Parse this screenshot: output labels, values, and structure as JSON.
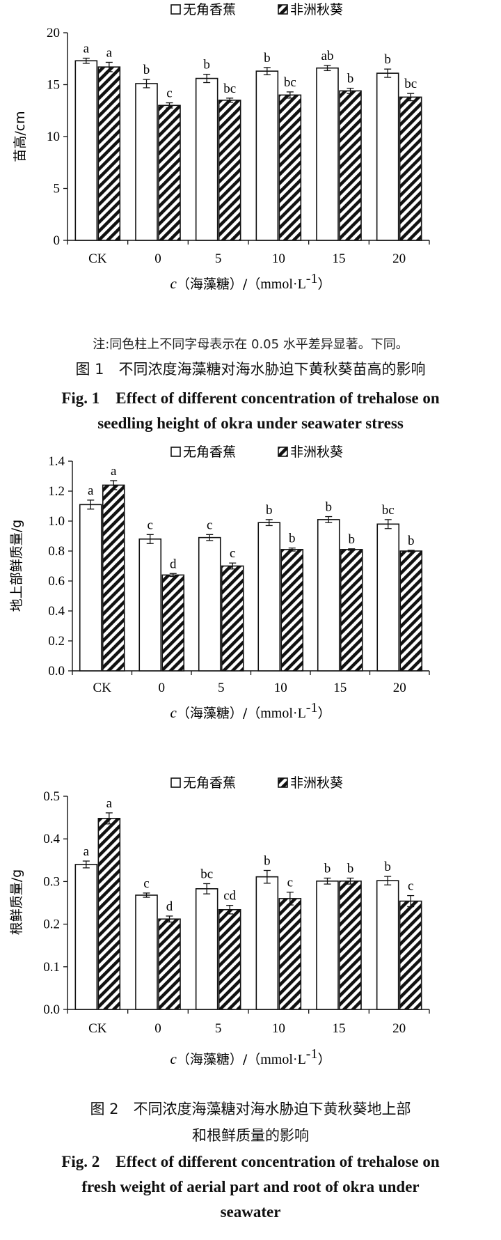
{
  "legend": {
    "series1": "无角香蕉",
    "series2": "非洲秋葵"
  },
  "fig1": {
    "note": "注:同色柱上不同字母表示在 0.05 水平差异显著。下同。",
    "title_cn": "图 1　不同浓度海藻糖对海水胁迫下黄秋葵苗高的影响",
    "title_en_line1": "Fig. 1　Effect of different concentration of trehalose on",
    "title_en_line2": "seedling height of okra under seawater stress"
  },
  "fig2": {
    "title_cn_line1": "图 2　不同浓度海藻糖对海水胁迫下黄秋葵地上部",
    "title_cn_line2": "和根鲜质量的影响",
    "title_en_line1": "Fig. 2　Effect of different concentration of trehalose on",
    "title_en_line2": "fresh weight of aerial part and root of okra under",
    "title_en_line3": "seawater"
  },
  "chart_data": [
    {
      "type": "bar",
      "categories": [
        "CK",
        "0",
        "5",
        "10",
        "15",
        "20"
      ],
      "ylabel": "苗高/cm",
      "xlabel_var": "c",
      "xlabel_cn": "（海藻糖）/（",
      "xlabel_unit": "mmol·L",
      "xlabel_sup": "-1",
      "xlabel_close": "）",
      "ylim": [
        0,
        20
      ],
      "yticks": [
        0,
        5,
        10,
        15,
        20
      ],
      "tick_labels": [
        "0",
        "5",
        "10",
        "15",
        "20"
      ],
      "series": [
        {
          "name": "无角香蕉",
          "values": [
            17.3,
            15.1,
            15.6,
            16.3,
            16.6,
            16.1
          ],
          "errors": [
            0.25,
            0.4,
            0.4,
            0.35,
            0.25,
            0.4
          ],
          "letters": [
            "a",
            "b",
            "b",
            "b",
            "ab",
            "b"
          ]
        },
        {
          "name": "非洲秋葵",
          "values": [
            16.7,
            13.0,
            13.5,
            14.0,
            14.4,
            13.8
          ],
          "errors": [
            0.45,
            0.25,
            0.2,
            0.3,
            0.25,
            0.35
          ],
          "letters": [
            "a",
            "c",
            "bc",
            "bc",
            "b",
            "bc"
          ]
        }
      ]
    },
    {
      "type": "bar",
      "categories": [
        "CK",
        "0",
        "5",
        "10",
        "15",
        "20"
      ],
      "ylabel": "地上部鲜质量/g",
      "xlabel_var": "c",
      "xlabel_cn": "（海藻糖）/（",
      "xlabel_unit": "mmol·L",
      "xlabel_sup": "-1",
      "xlabel_close": "）",
      "ylim": [
        0,
        1.4
      ],
      "yticks": [
        0,
        0.2,
        0.4,
        0.6,
        0.8,
        1.0,
        1.2,
        1.4
      ],
      "tick_labels": [
        "0.0",
        "0.2",
        "0.4",
        "0.6",
        "0.8",
        "1.0",
        "1.2",
        "1.4"
      ],
      "series": [
        {
          "name": "无角香蕉",
          "values": [
            1.11,
            0.88,
            0.89,
            0.99,
            1.01,
            0.98
          ],
          "errors": [
            0.03,
            0.03,
            0.02,
            0.02,
            0.02,
            0.03
          ],
          "letters": [
            "a",
            "c",
            "c",
            "b",
            "b",
            "bc"
          ]
        },
        {
          "name": "非洲秋葵",
          "values": [
            1.24,
            0.64,
            0.7,
            0.81,
            0.81,
            0.8
          ],
          "errors": [
            0.03,
            0.01,
            0.02,
            0.01,
            0.005,
            0.005
          ],
          "letters": [
            "a",
            "d",
            "c",
            "b",
            "b",
            "b"
          ]
        }
      ]
    },
    {
      "type": "bar",
      "categories": [
        "CK",
        "0",
        "5",
        "10",
        "15",
        "20"
      ],
      "ylabel": "根鲜质量/g",
      "xlabel_var": "c",
      "xlabel_cn": "（海藻糖）/（",
      "xlabel_unit": "mmol·L",
      "xlabel_sup": "-1",
      "xlabel_close": "）",
      "ylim": [
        0,
        0.5
      ],
      "yticks": [
        0,
        0.1,
        0.2,
        0.3,
        0.4,
        0.5
      ],
      "tick_labels": [
        "0.0",
        "0.1",
        "0.2",
        "0.3",
        "0.4",
        "0.5"
      ],
      "series": [
        {
          "name": "无角香蕉",
          "values": [
            0.34,
            0.268,
            0.283,
            0.311,
            0.301,
            0.302
          ],
          "errors": [
            0.008,
            0.005,
            0.012,
            0.015,
            0.007,
            0.01
          ],
          "letters": [
            "a",
            "c",
            "bc",
            "b",
            "b",
            "b"
          ]
        },
        {
          "name": "非洲秋葵",
          "values": [
            0.448,
            0.212,
            0.234,
            0.26,
            0.301,
            0.254
          ],
          "errors": [
            0.013,
            0.007,
            0.01,
            0.015,
            0.007,
            0.013
          ],
          "letters": [
            "a",
            "d",
            "cd",
            "c",
            "b",
            "c"
          ]
        }
      ]
    }
  ]
}
